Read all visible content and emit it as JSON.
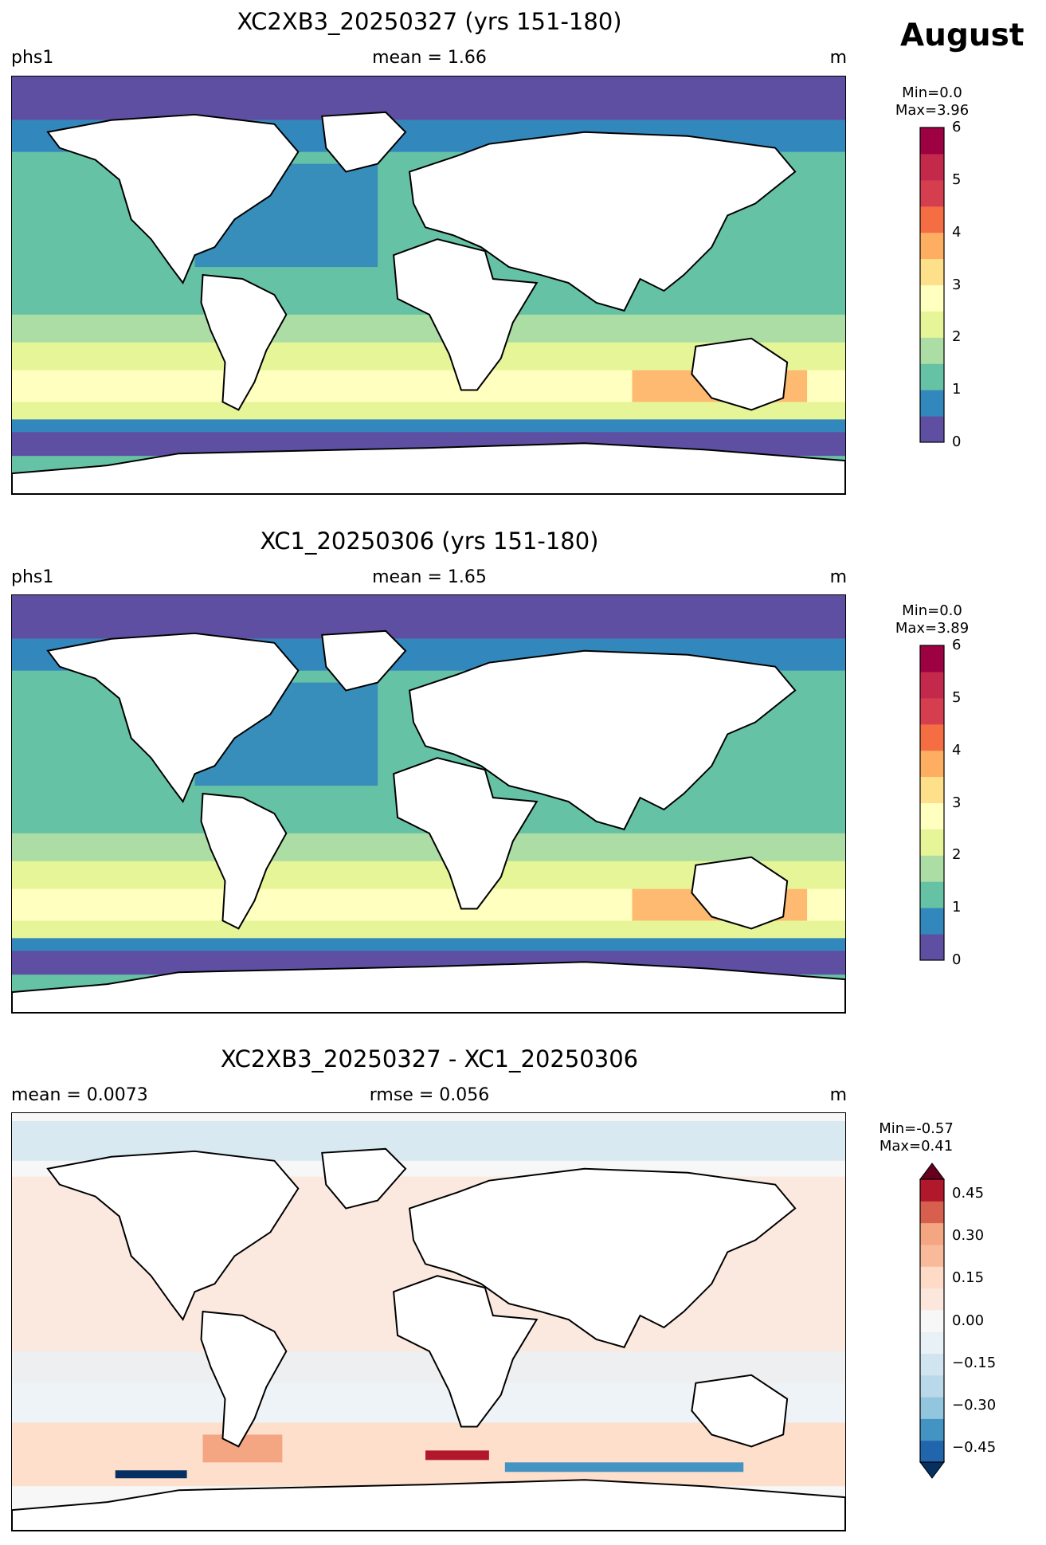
{
  "month": "August",
  "panels": [
    {
      "id": "p1",
      "title": "XC2XB3_20250327 (yrs 151-180)",
      "left": "phs1",
      "center": "mean = 1.66",
      "right": "m",
      "min_label": "Min=0.0",
      "max_label": "Max=3.96",
      "colorbar": {
        "ticks": [
          "0",
          "1",
          "2",
          "3",
          "4",
          "5",
          "6"
        ],
        "range": [
          0,
          6
        ],
        "extend": "none",
        "colors": [
          "#5e4fa2",
          "#3288bd",
          "#66c2a5",
          "#abdda4",
          "#e6f598",
          "#ffffbf",
          "#fee08b",
          "#fdae61",
          "#f46d43",
          "#d53e4f",
          "#c2294a",
          "#9e0142"
        ]
      }
    },
    {
      "id": "p2",
      "title": "XC1_20250306 (yrs 151-180)",
      "left": "phs1",
      "center": "mean = 1.65",
      "right": "m",
      "min_label": "Min=0.0",
      "max_label": "Max=3.89",
      "colorbar": {
        "ticks": [
          "0",
          "1",
          "2",
          "3",
          "4",
          "5",
          "6"
        ],
        "range": [
          0,
          6
        ],
        "extend": "none",
        "colors": [
          "#5e4fa2",
          "#3288bd",
          "#66c2a5",
          "#abdda4",
          "#e6f598",
          "#ffffbf",
          "#fee08b",
          "#fdae61",
          "#f46d43",
          "#d53e4f",
          "#c2294a",
          "#9e0142"
        ]
      }
    },
    {
      "id": "p3",
      "title": "XC2XB3_20250327 - XC1_20250306",
      "left": "mean = 0.0073",
      "center": "rmse = 0.056",
      "right": "m",
      "min_label": "Min=-0.57",
      "max_label": "Max=0.41",
      "colorbar": {
        "ticks": [
          "0.45",
          "0.30",
          "0.15",
          "0.00",
          "−0.15",
          "−0.30",
          "−0.45"
        ],
        "range": [
          -0.5,
          0.5
        ],
        "extend": "both",
        "colors": [
          "#053061",
          "#2166ac",
          "#4393c3",
          "#92c5de",
          "#b9d8e9",
          "#d1e5f0",
          "#e8f1f6",
          "#f7f7f7",
          "#fbe7dc",
          "#fddbc7",
          "#f9b99b",
          "#f4a582",
          "#d6604d",
          "#b2182b",
          "#67001f"
        ]
      }
    }
  ]
}
